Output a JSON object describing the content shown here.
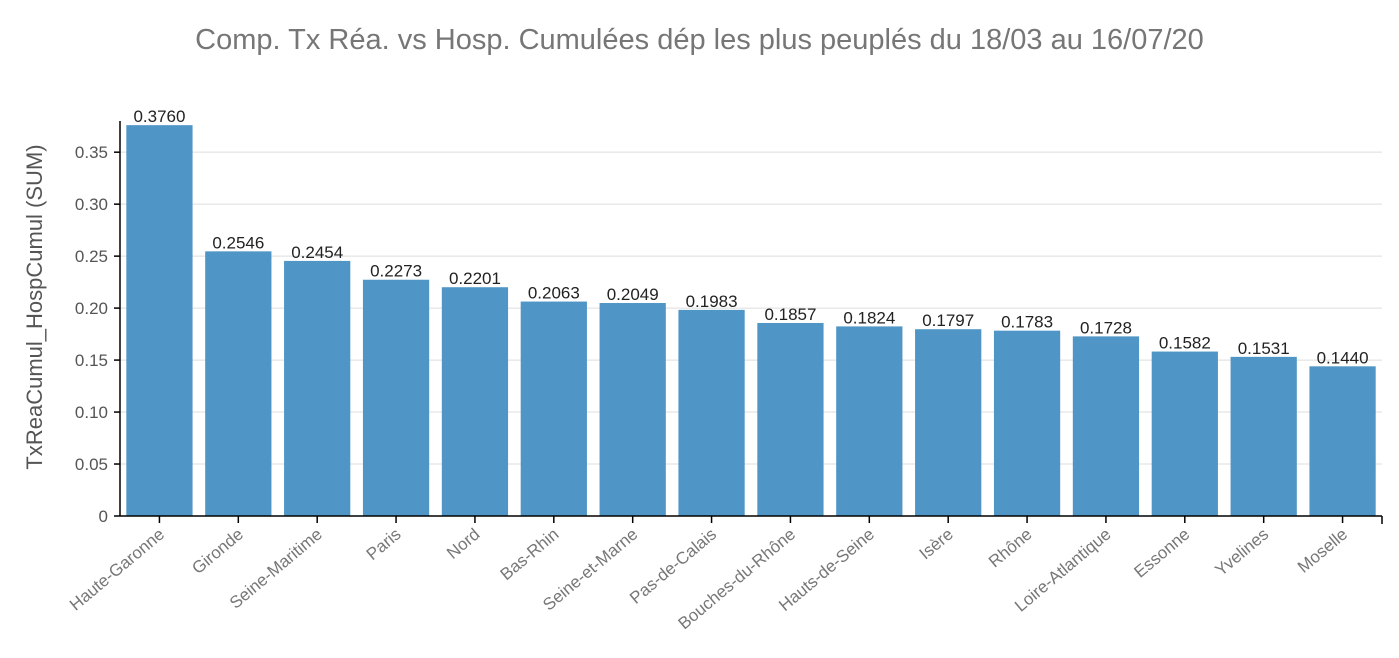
{
  "chart_data": {
    "type": "bar",
    "title": "Comp. Tx Réa. vs Hosp. Cumulées dép les plus peuplés du 18/03 au 16/07/20",
    "xlabel": "",
    "ylabel": "TxReaCumul_HospCumul (SUM)",
    "ylim": [
      0,
      0.38
    ],
    "yticks": [
      0,
      0.05,
      0.1,
      0.15,
      0.2,
      0.25,
      0.3,
      0.35
    ],
    "ytick_labels": [
      "0",
      "0.05",
      "0.10",
      "0.15",
      "0.20",
      "0.25",
      "0.30",
      "0.35"
    ],
    "grid": true,
    "bar_color": "#4f96c6",
    "categories": [
      "Haute-Garonne",
      "Gironde",
      "Seine-Maritime",
      "Paris",
      "Nord",
      "Bas-Rhin",
      "Seine-et-Marne",
      "Pas-de-Calais",
      "Bouches-du-Rhône",
      "Hauts-de-Seine",
      "Isère",
      "Rhône",
      "Loire-Atlantique",
      "Essonne",
      "Yvelines",
      "Moselle"
    ],
    "values": [
      0.376,
      0.2546,
      0.2454,
      0.2273,
      0.2201,
      0.2063,
      0.2049,
      0.1983,
      0.1857,
      0.1824,
      0.1797,
      0.1783,
      0.1728,
      0.1582,
      0.1531,
      0.144
    ],
    "value_labels": [
      "0.3760",
      "0.2546",
      "0.2454",
      "0.2273",
      "0.2201",
      "0.2063",
      "0.2049",
      "0.1983",
      "0.1857",
      "0.1824",
      "0.1797",
      "0.1783",
      "0.1728",
      "0.1582",
      "0.1531",
      "0.1440"
    ]
  }
}
